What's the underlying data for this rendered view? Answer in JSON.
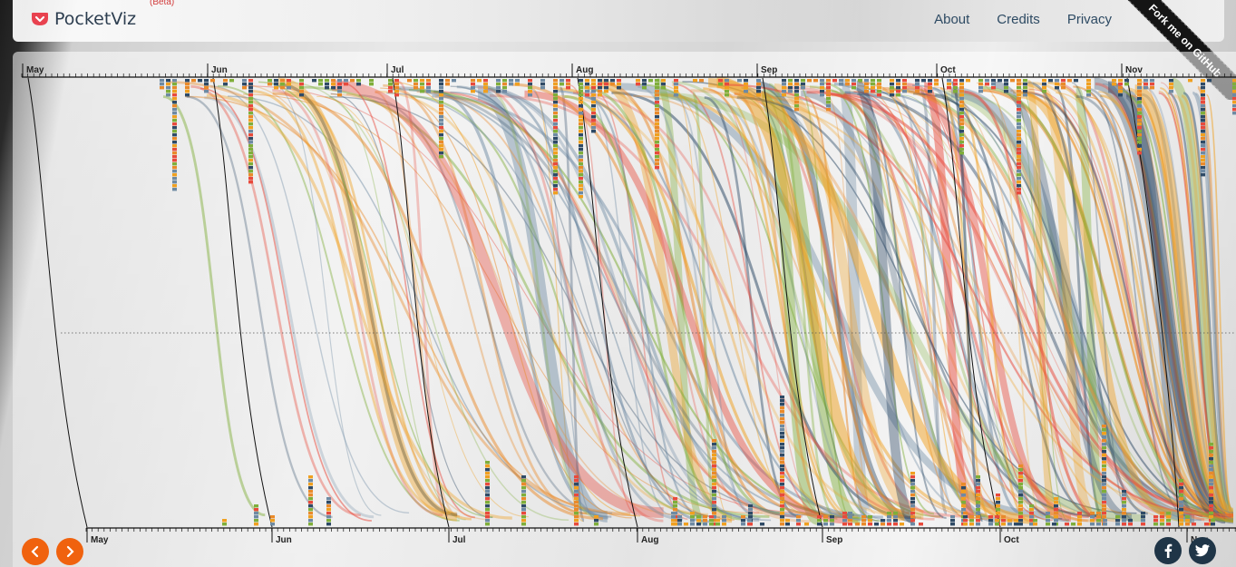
{
  "header": {
    "app_name": "PocketViz",
    "beta_label": "(Beta)",
    "nav": [
      "About",
      "Credits",
      "Privacy"
    ],
    "ribbon": "Fork me on GitHub"
  },
  "timeline": {
    "top_months": [
      "May",
      "Jun",
      "Jul",
      "Aug",
      "Sep",
      "Oct",
      "Nov"
    ],
    "bottom_months": [
      "May",
      "Jun",
      "Jul",
      "Aug",
      "Sep",
      "Oct",
      "Nov"
    ]
  },
  "palette": [
    "#2e4a66",
    "#e84a3c",
    "#f0a020",
    "#7fae3a",
    "#e98a2a",
    "#6e8aa3"
  ],
  "controls": {
    "prev_icon": "chevron-left-icon",
    "next_icon": "chevron-right-icon",
    "facebook_icon": "facebook-icon",
    "twitter_icon": "twitter-icon"
  }
}
